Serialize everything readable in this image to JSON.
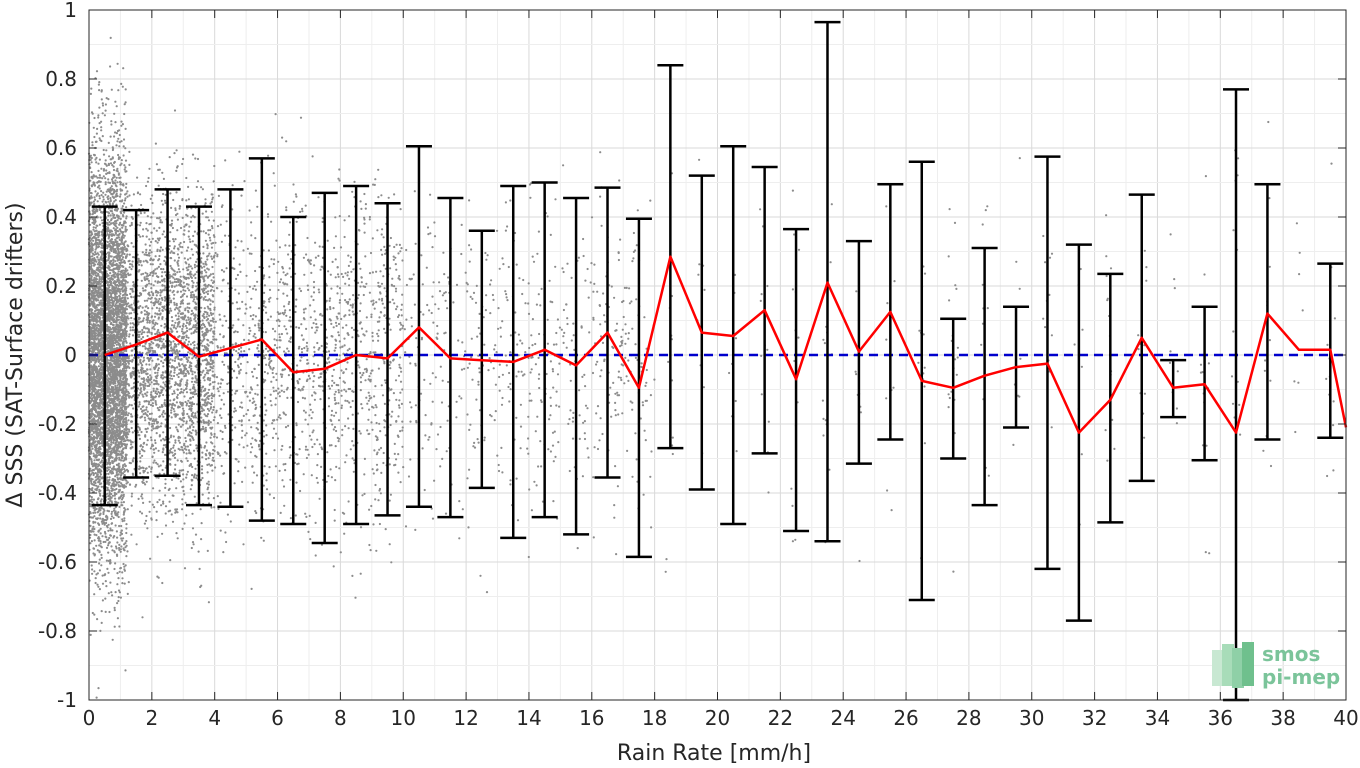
{
  "chart_data": {
    "type": "scatter",
    "xlabel": "Rain Rate [mm/h]",
    "ylabel": "Δ SSS (SAT-Surface drifters)",
    "xlim": [
      0,
      40
    ],
    "ylim": [
      -1,
      1
    ],
    "grid": true,
    "x_ticks": [
      "0",
      "2",
      "4",
      "6",
      "8",
      "10",
      "12",
      "14",
      "16",
      "18",
      "20",
      "22",
      "24",
      "26",
      "28",
      "30",
      "32",
      "34",
      "36",
      "38",
      "40"
    ],
    "y_ticks": [
      "-1",
      "-0.8",
      "-0.6",
      "-0.4",
      "-0.2",
      "0",
      "0.2",
      "0.4",
      "0.6",
      "0.8",
      "1"
    ],
    "reference_line": {
      "y": 0,
      "color": "#0000cc",
      "style": "dashed"
    },
    "colors": {
      "scatter": "#8c8c8c",
      "mean_line": "#ff0000",
      "error_bars": "#000000",
      "reference": "#0000cc"
    },
    "series": [
      {
        "kind": "mean_with_error_bars",
        "x": [
          0.5,
          1.5,
          2.5,
          3.5,
          4.5,
          5.5,
          6.5,
          7.5,
          8.5,
          9.5,
          10.5,
          11.5,
          12.5,
          13.5,
          14.5,
          15.5,
          16.5,
          17.5,
          18.5,
          19.5,
          20.5,
          21.5,
          22.5,
          23.5,
          24.5,
          25.5,
          26.5,
          27.5,
          28.5,
          29.5,
          30.5,
          31.5,
          32.5,
          33.5,
          34.5,
          35.5,
          36.5,
          37.5,
          38.5,
          39.5,
          40
        ],
        "mean": [
          0.0,
          0.03,
          0.065,
          -0.005,
          0.02,
          0.045,
          -0.05,
          -0.04,
          0.0,
          -0.01,
          0.08,
          -0.01,
          -0.015,
          -0.02,
          0.015,
          -0.03,
          0.065,
          -0.095,
          0.285,
          0.065,
          0.055,
          0.13,
          -0.07,
          0.21,
          0.01,
          0.125,
          -0.075,
          -0.095,
          -0.06,
          -0.035,
          -0.025,
          -0.225,
          -0.13,
          0.05,
          -0.095,
          -0.085,
          -0.225,
          0.12,
          0.015,
          0.015,
          -0.21
        ],
        "upper": [
          0.43,
          0.42,
          0.48,
          0.43,
          0.48,
          0.57,
          0.4,
          0.47,
          0.49,
          0.44,
          0.605,
          0.455,
          0.36,
          0.49,
          0.5,
          0.455,
          0.485,
          0.395,
          0.84,
          0.52,
          0.605,
          0.545,
          0.365,
          0.965,
          0.33,
          0.495,
          0.56,
          0.105,
          0.31,
          0.14,
          0.575,
          0.32,
          0.235,
          0.465,
          -0.015,
          0.14,
          0.77,
          0.495,
          null,
          0.265,
          null
        ],
        "lower": [
          -0.435,
          -0.355,
          -0.35,
          -0.435,
          -0.44,
          -0.48,
          -0.49,
          -0.545,
          -0.49,
          -0.465,
          -0.44,
          -0.47,
          -0.385,
          -0.53,
          -0.47,
          -0.52,
          -0.355,
          -0.585,
          -0.27,
          -0.39,
          -0.49,
          -0.285,
          -0.51,
          -0.54,
          -0.315,
          -0.245,
          -0.71,
          -0.3,
          -0.435,
          -0.21,
          -0.62,
          -0.77,
          -0.485,
          -0.365,
          -0.18,
          -0.305,
          -1.0,
          -0.245,
          null,
          -0.24,
          null
        ]
      }
    ]
  },
  "logo": {
    "line1": "smos",
    "line2": "pi-mep"
  }
}
